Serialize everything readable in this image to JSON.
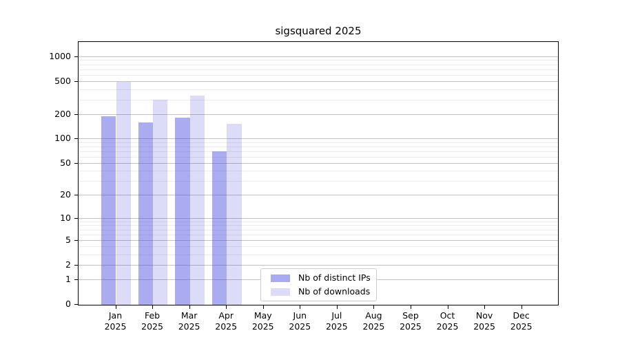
{
  "chart_data": {
    "type": "bar",
    "title": "sigsquared 2025",
    "categories": [
      "Jan 2025",
      "Feb 2025",
      "Mar 2025",
      "Apr 2025",
      "May 2025",
      "Jun 2025",
      "Jul 2025",
      "Aug 2025",
      "Sep 2025",
      "Oct 2025",
      "Nov 2025",
      "Dec 2025"
    ],
    "series": [
      {
        "name": "Nb of distinct IPs",
        "base_color": "68,68,221",
        "alpha": 0.45,
        "swatch_color": "#a9a9f0",
        "values": [
          186,
          159,
          179,
          70,
          null,
          null,
          null,
          null,
          null,
          null,
          null,
          null
        ]
      },
      {
        "name": "Nb of downloads",
        "base_color": "68,68,221",
        "alpha": 0.19,
        "swatch_color": "#dcdcf8",
        "values": [
          490,
          300,
          336,
          152,
          null,
          null,
          null,
          null,
          null,
          null,
          null,
          null
        ]
      }
    ],
    "xlabel": "",
    "ylabel": "",
    "yscale": "symlog-like (position proportional to log10(1+value))",
    "y_ticks": [
      0,
      1,
      2,
      5,
      10,
      20,
      50,
      100,
      200,
      500,
      1000
    ],
    "ylim": [
      0,
      1500
    ],
    "grid": "horizontal major + log minor",
    "legend_position": "lower center",
    "frame_color": "#000000",
    "major_grid_color": "#c2c2c2",
    "minor_grid_color": "#ececec"
  }
}
